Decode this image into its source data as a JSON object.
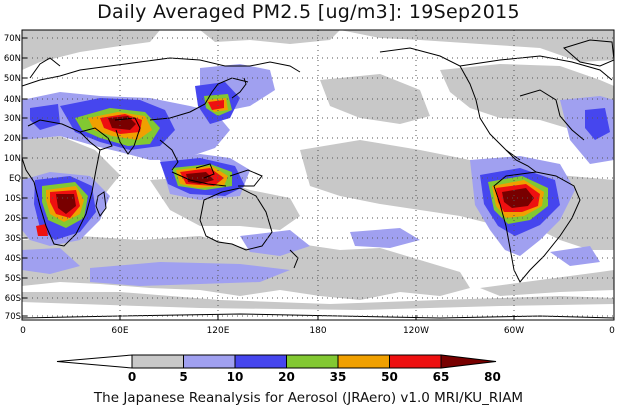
{
  "title": "Daily Averaged PM2.5 [ug/m3]: 19Sep2015",
  "footer": "The Japanese Reanalysis for Aerosol (JRAero) v1.0 MRI/KU_RIAM",
  "map": {
    "lat_labels": [
      "70N",
      "60N",
      "50N",
      "40N",
      "30N",
      "20N",
      "10N",
      "EQ",
      "10S",
      "20S",
      "30S",
      "40S",
      "50S",
      "60S",
      "70S"
    ],
    "lon_labels": [
      "0",
      "60E",
      "120E",
      "180",
      "120W",
      "60W",
      "0"
    ]
  },
  "colorbar": {
    "levels": [
      "0",
      "5",
      "10",
      "20",
      "35",
      "50",
      "65",
      "80"
    ],
    "colors": [
      "#ffffff",
      "#c8c8c8",
      "#a0a0f0",
      "#4646ee",
      "#82c832",
      "#f0a000",
      "#ee1010",
      "#780000"
    ]
  }
}
